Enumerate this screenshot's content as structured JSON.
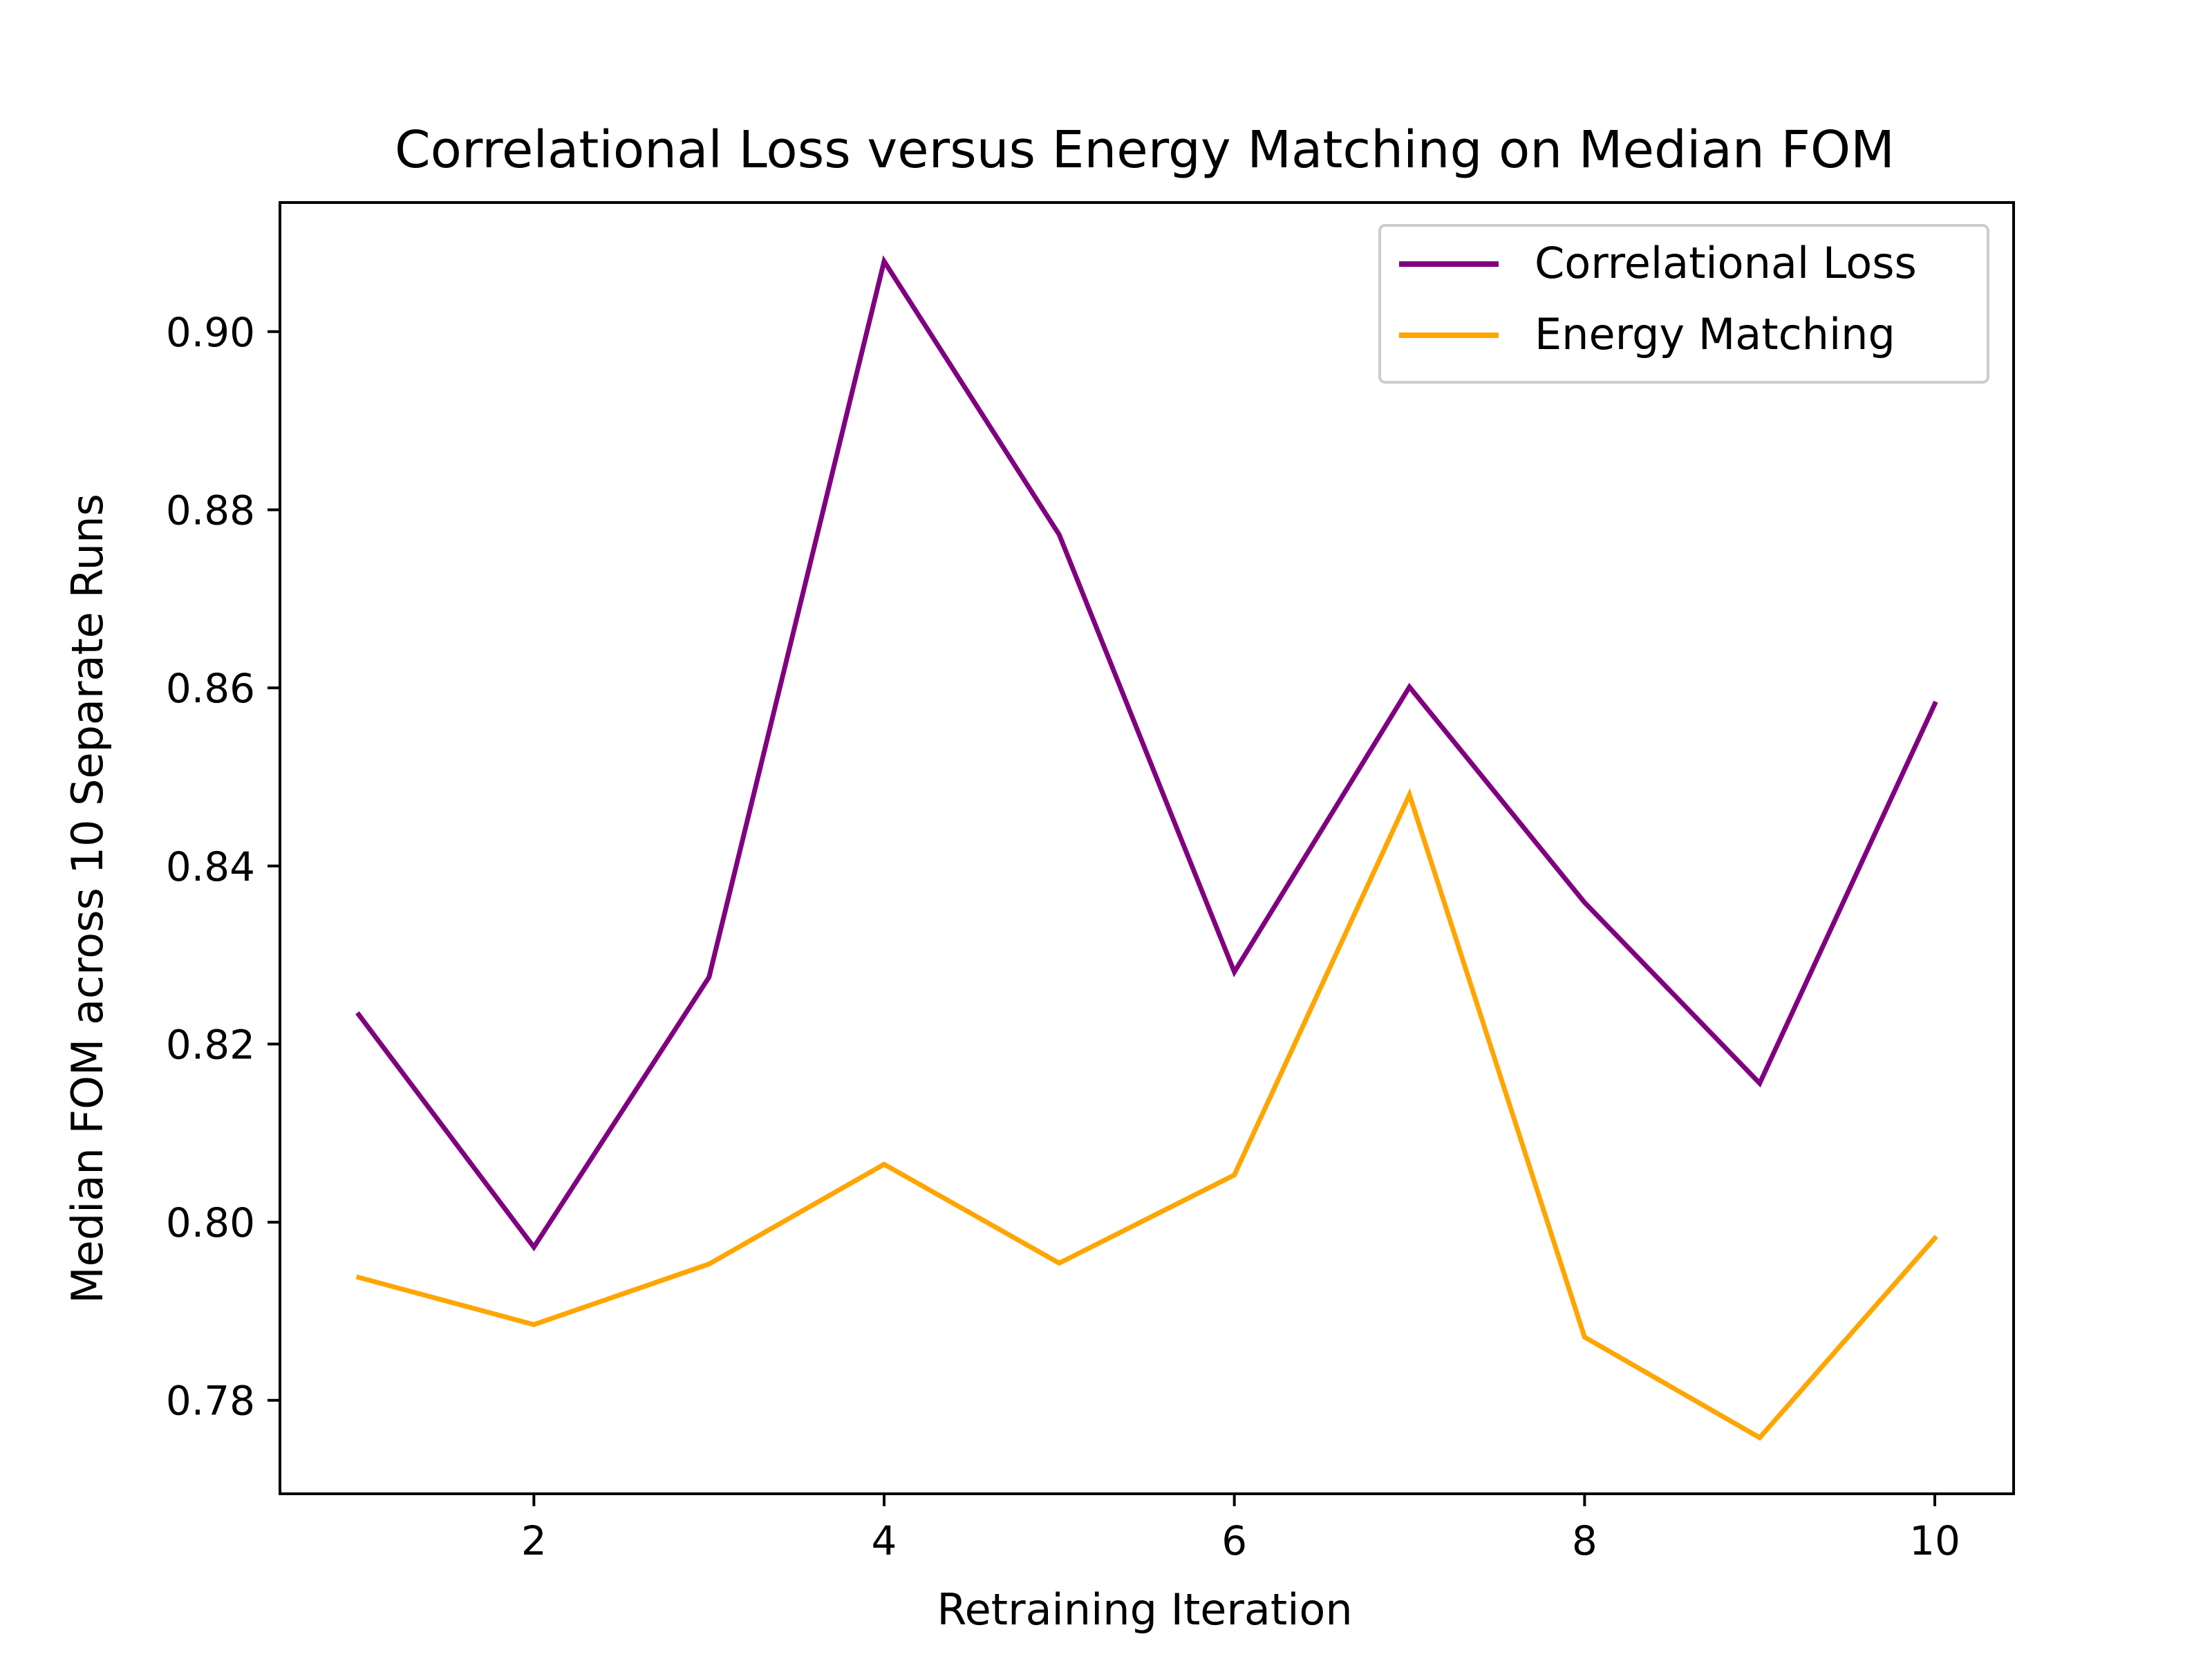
{
  "chart_data": {
    "type": "line",
    "title": "Correlational Loss versus Energy Matching on Median FOM",
    "xlabel": "Retraining Iteration",
    "ylabel": "Median FOM across 10 Separate Runs",
    "x": [
      1,
      2,
      3,
      4,
      5,
      6,
      7,
      8,
      9,
      10
    ],
    "xlim": [
      0.55,
      10.45
    ],
    "ylim": [
      0.7695,
      0.9145
    ],
    "x_ticks": [
      2,
      4,
      6,
      8,
      10
    ],
    "x_tick_labels": [
      "2",
      "4",
      "6",
      "8",
      "10"
    ],
    "y_ticks": [
      0.78,
      0.8,
      0.82,
      0.84,
      0.86,
      0.88,
      0.9
    ],
    "y_tick_labels": [
      "0.78",
      "0.80",
      "0.82",
      "0.84",
      "0.86",
      "0.88",
      "0.90"
    ],
    "grid": false,
    "legend_position": "top-right",
    "series": [
      {
        "name": "Correlational Loss",
        "color": "#800080",
        "values": [
          0.8233,
          0.7972,
          0.8275,
          0.9079,
          0.8772,
          0.8281,
          0.8601,
          0.8359,
          0.8156,
          0.8582
        ]
      },
      {
        "name": "Energy Matching",
        "color": "#FFA500",
        "values": [
          0.7938,
          0.7885,
          0.7953,
          0.8065,
          0.7954,
          0.8053,
          0.848,
          0.7871,
          0.7758,
          0.7982
        ]
      }
    ]
  }
}
